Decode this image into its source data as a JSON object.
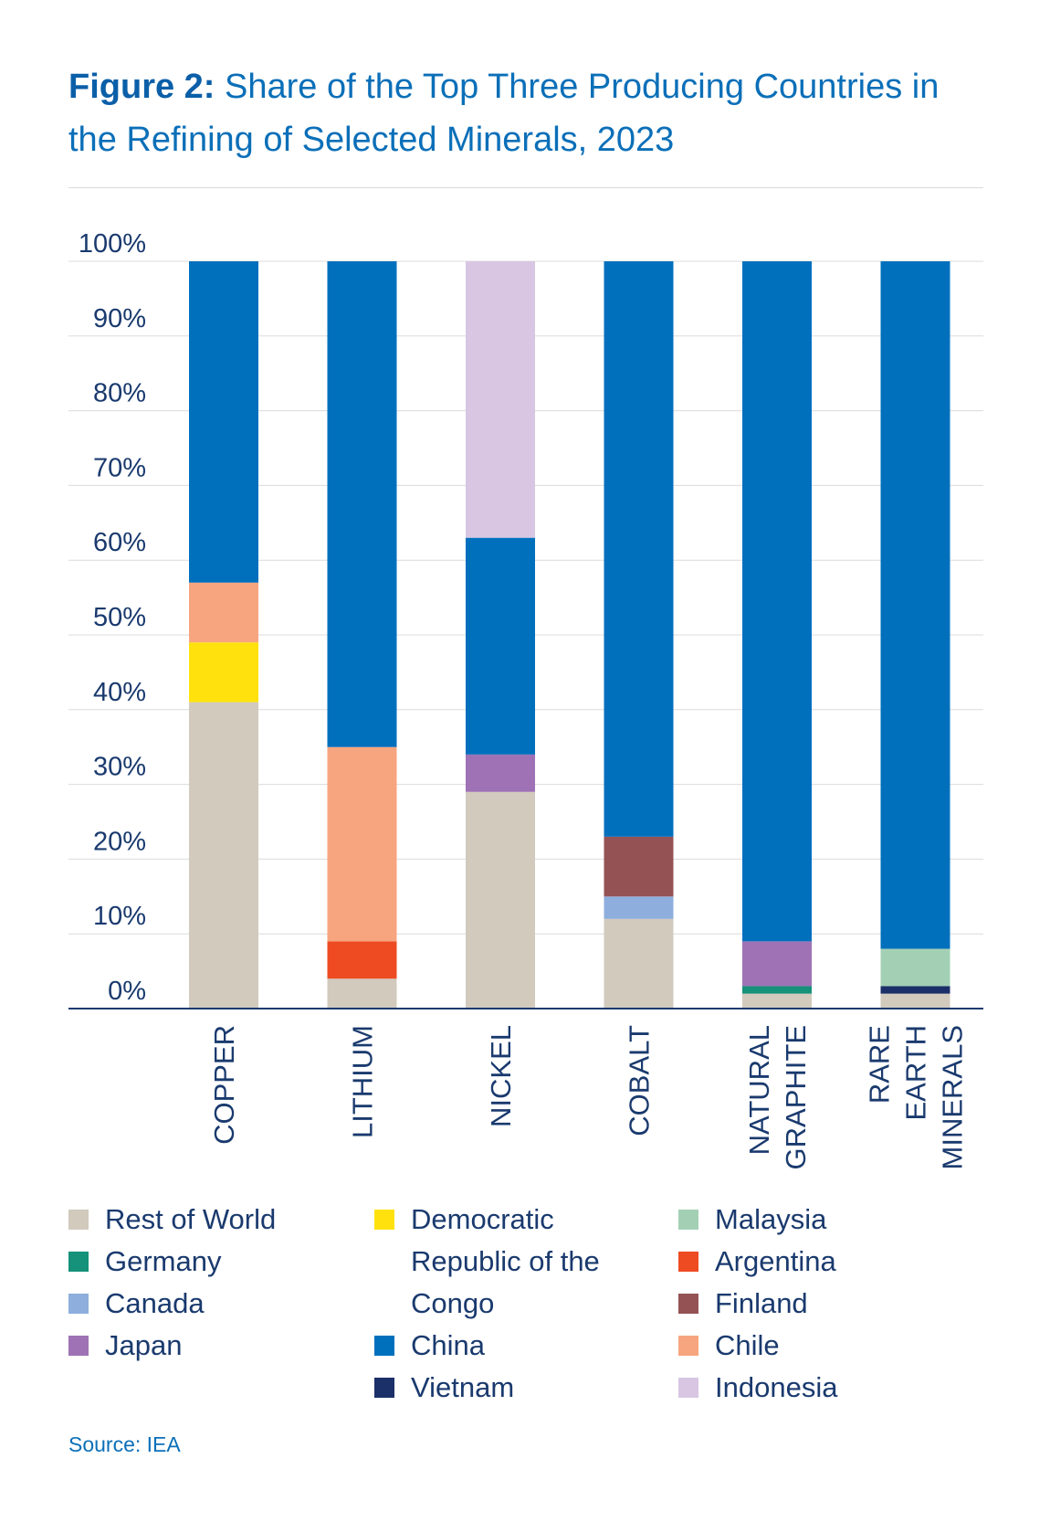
{
  "figure_label": "Figure 2:",
  "figure_title": "Share of the Top Three Producing Countries in the Refining of Selected Minerals, 2023",
  "source": "Source: IEA",
  "colors": {
    "Rest of World": "#d1cabd",
    "Democratic Republic of the Congo": "#ffe20d",
    "Malaysia": "#a3d0b4",
    "Germany": "#16917a",
    "Argentina": "#ee4b22",
    "Canada": "#8eaedd",
    "Finland": "#945255",
    "Japan": "#9e72b4",
    "China": "#0070bd",
    "Chile": "#f7a57f",
    "Vietnam": "#1b2f68",
    "Indonesia": "#d8c6e2"
  },
  "legend_columns": [
    [
      "Rest of World",
      "Germany",
      "Canada",
      "Japan"
    ],
    [
      "Democratic Republic of the Congo",
      "China",
      "Vietnam"
    ],
    [
      "Malaysia",
      "Argentina",
      "Finland",
      "Chile",
      "Indonesia"
    ]
  ],
  "chart_data": {
    "type": "bar",
    "stacked": true,
    "ylim": [
      0,
      100
    ],
    "yticks": [
      "0%",
      "10%",
      "20%",
      "30%",
      "40%",
      "50%",
      "60%",
      "70%",
      "80%",
      "90%",
      "100%"
    ],
    "grid": true,
    "legend_position": "bottom",
    "categories": [
      [
        "COPPER"
      ],
      [
        "LITHIUM"
      ],
      [
        "NICKEL"
      ],
      [
        "COBALT"
      ],
      [
        "NATURAL",
        "GRAPHITE"
      ],
      [
        "RARE",
        "EARTH",
        "MINERALS"
      ]
    ],
    "bars": [
      [
        {
          "name": "Rest of World",
          "value": 41
        },
        {
          "name": "Democratic Republic of the Congo",
          "value": 8
        },
        {
          "name": "Chile",
          "value": 8
        },
        {
          "name": "China",
          "value": 43
        }
      ],
      [
        {
          "name": "Rest of World",
          "value": 4
        },
        {
          "name": "Argentina",
          "value": 5
        },
        {
          "name": "Chile",
          "value": 26
        },
        {
          "name": "China",
          "value": 65
        }
      ],
      [
        {
          "name": "Rest of World",
          "value": 29
        },
        {
          "name": "Japan",
          "value": 5
        },
        {
          "name": "China",
          "value": 29
        },
        {
          "name": "Indonesia",
          "value": 37
        }
      ],
      [
        {
          "name": "Rest of World",
          "value": 12
        },
        {
          "name": "Canada",
          "value": 3
        },
        {
          "name": "Finland",
          "value": 8
        },
        {
          "name": "China",
          "value": 77
        }
      ],
      [
        {
          "name": "Rest of World",
          "value": 2
        },
        {
          "name": "Germany",
          "value": 1
        },
        {
          "name": "Japan",
          "value": 6
        },
        {
          "name": "China",
          "value": 91
        }
      ],
      [
        {
          "name": "Rest of World",
          "value": 2
        },
        {
          "name": "Vietnam",
          "value": 1
        },
        {
          "name": "Malaysia",
          "value": 5
        },
        {
          "name": "China",
          "value": 92
        }
      ]
    ]
  }
}
